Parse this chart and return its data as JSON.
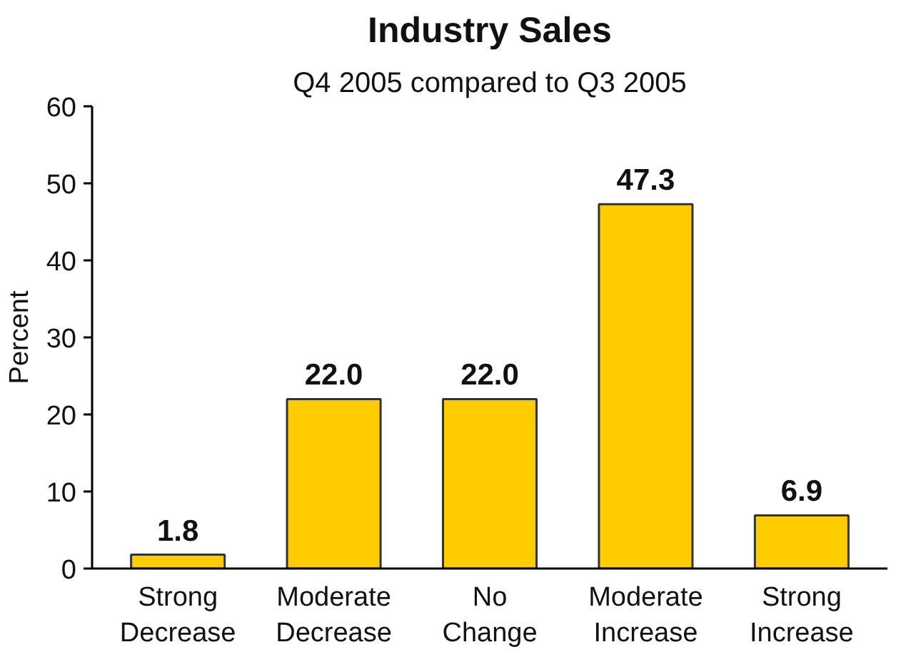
{
  "chart_data": {
    "type": "bar",
    "title": "Industry Sales",
    "subtitle": "Q4 2005 compared to Q3 2005",
    "ylabel": "Percent",
    "categories": [
      "Strong\nDecrease",
      "Moderate\nDecrease",
      "No\nChange",
      "Moderate\nIncrease",
      "Strong\nIncrease"
    ],
    "values": [
      1.8,
      22.0,
      22.0,
      47.3,
      6.9
    ],
    "value_labels": [
      "1.8",
      "22.0",
      "22.0",
      "47.3",
      "6.9"
    ],
    "color": "#ffcc00",
    "ylim": [
      0,
      60
    ],
    "yticks": [
      0,
      10,
      20,
      30,
      40,
      50,
      60
    ],
    "grid": false
  }
}
